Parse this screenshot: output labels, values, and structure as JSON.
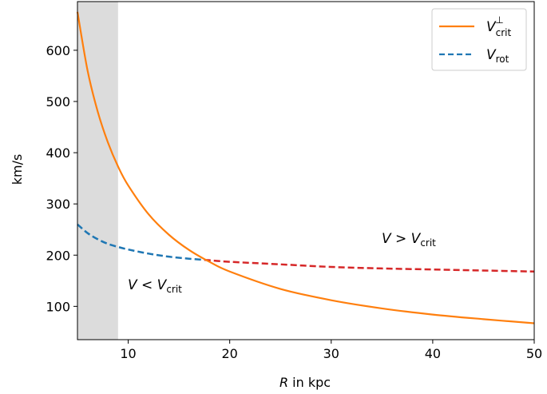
{
  "chart_data": {
    "type": "line",
    "xlabel_var": "R",
    "xlabel_rest": " in kpc",
    "ylabel": "km/s",
    "xlim": [
      5,
      50
    ],
    "ylim": [
      35,
      695
    ],
    "xticks": [
      10,
      20,
      30,
      40,
      50
    ],
    "yticks": [
      100,
      200,
      300,
      400,
      500,
      600
    ],
    "grid": false,
    "legend_position": "top-right",
    "shaded_region": {
      "x": [
        5,
        9
      ],
      "color": "#dcdcdc"
    },
    "crossing_x": 17.5,
    "series": [
      {
        "name_main": "V",
        "name_sub": "crit",
        "name_sup": "⊥",
        "style": "solid",
        "color": "#ff7f0e",
        "x": [
          5,
          6,
          7,
          8,
          9,
          10,
          12,
          14,
          16,
          18,
          20,
          25,
          30,
          35,
          40,
          45,
          50
        ],
        "values": [
          675,
          560,
          480,
          420,
          373,
          336,
          280,
          240,
          210,
          187,
          168,
          134,
          112,
          96,
          84,
          75,
          67
        ]
      },
      {
        "name_main": "V",
        "name_sub": "rot",
        "style": "dashed",
        "color": "#1f77b4",
        "color_after_crossing": "#d62728",
        "x": [
          5,
          6,
          7,
          8,
          9,
          10,
          12,
          14,
          16,
          18,
          20,
          25,
          30,
          35,
          40,
          45,
          50
        ],
        "values": [
          260,
          243,
          231,
          222,
          216,
          211,
          203,
          197,
          193,
          190,
          187,
          182,
          177,
          174,
          172,
          170,
          168
        ]
      }
    ],
    "annotations": [
      {
        "main": "V < V",
        "sub": "crit",
        "x": 10,
        "y": 137
      },
      {
        "main": "V > V",
        "sub": "crit",
        "x": 35,
        "y": 225
      }
    ]
  }
}
